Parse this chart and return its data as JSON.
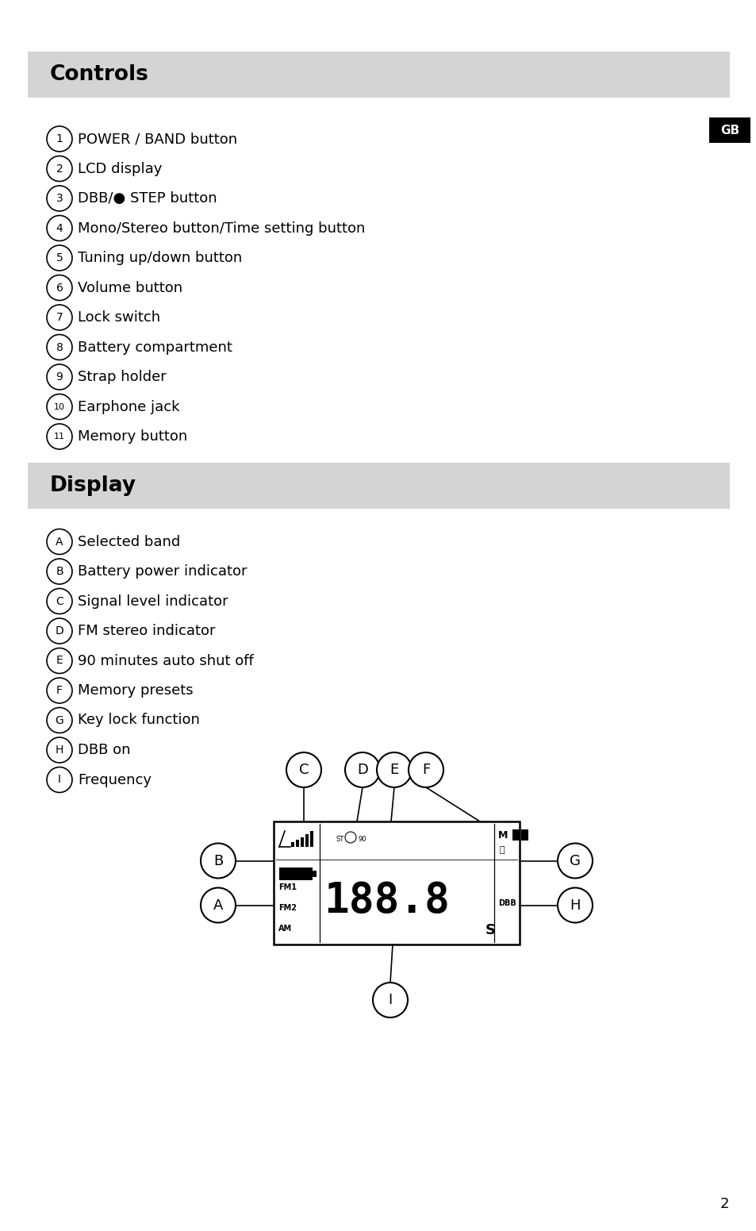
{
  "page_bg": "#ffffff",
  "header_bg": "#d4d4d4",
  "title_controls": "Controls",
  "title_display": "Display",
  "gb_bg": "#000000",
  "gb_text": "GB",
  "controls_items": [
    [
      "1",
      "POWER / BAND button"
    ],
    [
      "2",
      "LCD display"
    ],
    [
      "3",
      "DBB/● STEP button"
    ],
    [
      "4",
      "Mono/Stereo button/Time setting button"
    ],
    [
      "5",
      "Tuning up/down button"
    ],
    [
      "6",
      "Volume button"
    ],
    [
      "7",
      "Lock switch"
    ],
    [
      "8",
      "Battery compartment"
    ],
    [
      "9",
      "Strap holder"
    ],
    [
      "10",
      "Earphone jack"
    ],
    [
      "11",
      "Memory button"
    ]
  ],
  "display_items": [
    [
      "A",
      "Selected band"
    ],
    [
      "B",
      "Battery power indicator"
    ],
    [
      "C",
      "Signal level indicator"
    ],
    [
      "D",
      "FM stereo indicator"
    ],
    [
      "E",
      "90 minutes auto shut off"
    ],
    [
      "F",
      "Memory presets"
    ],
    [
      "G",
      "Key lock function"
    ],
    [
      "H",
      "DBB on"
    ],
    [
      "I",
      "Frequency"
    ]
  ],
  "page_number": "2"
}
